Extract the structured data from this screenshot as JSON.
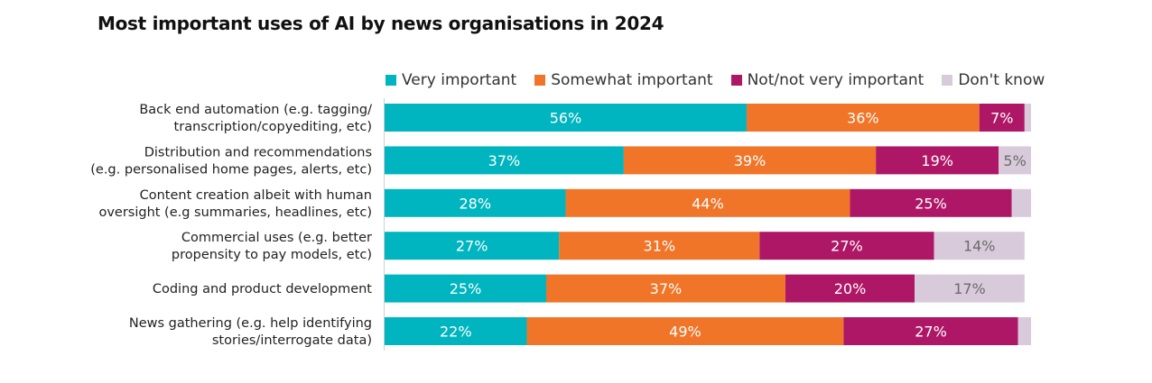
{
  "chart_data": {
    "type": "bar",
    "orientation": "horizontal",
    "stacked": true,
    "title": "Most important uses of AI by news organisations in 2024",
    "categories": [
      [
        "Back end automation (e.g. tagging/",
        "transcription/copyediting, etc)"
      ],
      [
        "Distribution and recommendations",
        "(e.g. personalised home pages, alerts, etc)"
      ],
      [
        "Content creation albeit with human",
        "oversight (e.g summaries, headlines, etc)"
      ],
      [
        "Commercial uses (e.g. better",
        "propensity to pay models, etc)"
      ],
      [
        "Coding and product development"
      ],
      [
        "News gathering (e.g. help identifying",
        "stories/interrogate data)"
      ]
    ],
    "series": [
      {
        "name": "Very important",
        "color": "#00B5BF",
        "label_color": "#ffffff",
        "values": [
          56,
          37,
          28,
          27,
          25,
          22
        ]
      },
      {
        "name": "Somewhat important",
        "color": "#F07529",
        "label_color": "#ffffff",
        "values": [
          36,
          39,
          44,
          31,
          37,
          49
        ]
      },
      {
        "name": "Not/not very important",
        "color": "#AE1766",
        "label_color": "#ffffff",
        "values": [
          7,
          19,
          25,
          27,
          20,
          27
        ]
      },
      {
        "name": "Don't know",
        "color": "#D8CADB",
        "label_color": "#6B6B6B",
        "values": [
          1,
          5,
          3,
          14,
          17,
          2
        ]
      }
    ],
    "data_labels": [
      [
        "56%",
        "36%",
        "7%",
        ""
      ],
      [
        "37%",
        "39%",
        "19%",
        "5%"
      ],
      [
        "28%",
        "44%",
        "25%",
        ""
      ],
      [
        "27%",
        "31%",
        "27%",
        "14%"
      ],
      [
        "25%",
        "37%",
        "20%",
        "17%"
      ],
      [
        "22%",
        "49%",
        "27%",
        ""
      ]
    ],
    "xlim": [
      0,
      100
    ],
    "grid": false,
    "legend_position": "top"
  }
}
